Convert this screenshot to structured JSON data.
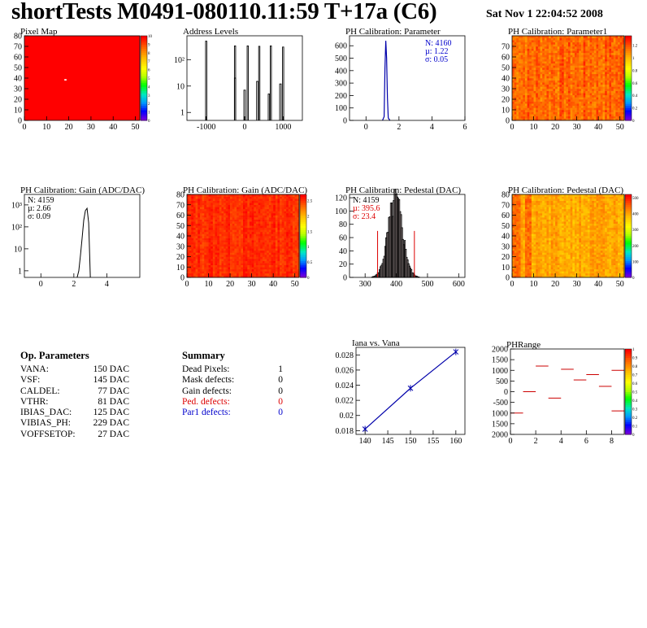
{
  "header": {
    "title": "shortTests M0491-080110.11:59 T+17a (C6)",
    "date": "Sat Nov  1 22:04:52 2008"
  },
  "colors": {
    "blue_text": "#0000cc",
    "red_text": "#dd0000",
    "blue_line": "#0000aa"
  },
  "op_parameters": {
    "title": "Op. Parameters",
    "rows": [
      {
        "key": "VANA:",
        "value": "150 DAC"
      },
      {
        "key": "VSF:",
        "value": "145 DAC"
      },
      {
        "key": "CALDEL:",
        "value": "77 DAC"
      },
      {
        "key": "VTHR:",
        "value": "81 DAC"
      },
      {
        "key": "IBIAS_DAC:",
        "value": "125 DAC"
      },
      {
        "key": "VIBIAS_PH:",
        "value": "229 DAC"
      },
      {
        "key": "VOFFSETOP:",
        "value": "27 DAC"
      }
    ]
  },
  "summary": {
    "title": "Summary",
    "rows": [
      {
        "key": "Dead Pixels:",
        "value": "1",
        "color": "#000000"
      },
      {
        "key": "Mask defects:",
        "value": "0",
        "color": "#000000"
      },
      {
        "key": "Gain defects:",
        "value": "0",
        "color": "#000000"
      },
      {
        "key": "Ped. defects:",
        "value": "0",
        "color": "#dd0000"
      },
      {
        "key": "Par1 defects:",
        "value": "0",
        "color": "#0000cc"
      }
    ]
  },
  "chart_data": [
    {
      "id": "pixel_map",
      "type": "heatmap",
      "title": "Pixel Map",
      "xlim": [
        0,
        52
      ],
      "ylim": [
        0,
        80
      ],
      "xticks": [
        "0",
        "10",
        "20",
        "30",
        "40",
        "50"
      ],
      "yticks": [
        "0",
        "10",
        "20",
        "30",
        "40",
        "50",
        "60",
        "70",
        "80"
      ],
      "zticks": [
        "0",
        "1",
        "2",
        "3",
        "4",
        "5",
        "6",
        "7",
        "8",
        "9",
        "10"
      ],
      "zlim": [
        0,
        10
      ],
      "uniform_value": 10,
      "dead_pixels": [
        {
          "col": 18,
          "row": 38
        }
      ]
    },
    {
      "id": "address_levels",
      "type": "line",
      "title": "Address Levels",
      "xlim": [
        -1500,
        1500
      ],
      "ylog": true,
      "ylim": [
        0.5,
        800
      ],
      "xticks": [
        "-1000",
        "0",
        "1000"
      ],
      "yticks": [
        "1",
        "10",
        "10²"
      ],
      "peaks": [
        {
          "x": -1000,
          "y": 500,
          "width": 10
        },
        {
          "x": -250,
          "y": 20,
          "width": 30
        },
        {
          "x": -250,
          "y": 330,
          "width": 10
        },
        {
          "x": 0,
          "y": 7,
          "width": 40
        },
        {
          "x": 80,
          "y": 330,
          "width": 10
        },
        {
          "x": 330,
          "y": 15,
          "width": 40
        },
        {
          "x": 380,
          "y": 320,
          "width": 10
        },
        {
          "x": 630,
          "y": 5,
          "width": 35
        },
        {
          "x": 680,
          "y": 330,
          "width": 10
        },
        {
          "x": 930,
          "y": 12,
          "width": 40
        },
        {
          "x": 1000,
          "y": 300,
          "width": 10
        }
      ]
    },
    {
      "id": "ph_cal_param",
      "type": "line",
      "title": "PH Calibration: Parameter",
      "xlim": [
        -1,
        6
      ],
      "ylim": [
        0,
        680
      ],
      "xticks": [
        "0",
        "2",
        "4",
        "6"
      ],
      "yticks": [
        "0",
        "100",
        "200",
        "300",
        "400",
        "500",
        "600"
      ],
      "stats": {
        "N": "N: 4160",
        "mu": "µ: 1.22",
        "sigma": "σ: 0.05"
      },
      "x": [
        1.0,
        1.1,
        1.15,
        1.2,
        1.25,
        1.3,
        1.35,
        1.45
      ],
      "y": [
        0,
        30,
        420,
        640,
        500,
        180,
        20,
        0
      ]
    },
    {
      "id": "ph_cal_param1",
      "type": "heatmap",
      "title": "PH Calibration: Parameter1",
      "xlim": [
        0,
        52
      ],
      "ylim": [
        0,
        80
      ],
      "xticks": [
        "0",
        "10",
        "20",
        "30",
        "40",
        "50"
      ],
      "yticks": [
        "0",
        "10",
        "20",
        "30",
        "40",
        "50",
        "60",
        "70"
      ],
      "zticks": [
        "0",
        "0.2",
        "0.4",
        "0.6",
        "0.8",
        "1",
        "1.2"
      ],
      "zlim": [
        0,
        1.35
      ],
      "typical_range": [
        1.05,
        1.3
      ]
    },
    {
      "id": "gain_hist",
      "type": "line",
      "title": "PH Calibration: Gain (ADC/DAC)",
      "xlim": [
        -1,
        6
      ],
      "ylog": true,
      "ylim": [
        0.5,
        3000
      ],
      "xticks": [
        "0",
        "2",
        "4"
      ],
      "yticks": [
        "1",
        "10",
        "10²",
        "10³"
      ],
      "stats": {
        "N": "N: 4159",
        "mu": "µ: 2.66",
        "sigma": "σ: 0.09"
      },
      "x": [
        2.2,
        2.3,
        2.4,
        2.5,
        2.6,
        2.7,
        2.8,
        2.9,
        3.0
      ],
      "y": [
        0,
        1,
        5,
        30,
        200,
        550,
        700,
        150,
        0
      ]
    },
    {
      "id": "gain_map",
      "type": "heatmap",
      "title": "PH Calibration: Gain (ADC/DAC)",
      "xlim": [
        0,
        52
      ],
      "ylim": [
        0,
        80
      ],
      "xticks": [
        "0",
        "10",
        "20",
        "30",
        "40",
        "50"
      ],
      "yticks": [
        "0",
        "10",
        "20",
        "30",
        "40",
        "50",
        "60",
        "70",
        "80"
      ],
      "zticks": [
        "0",
        "0.5",
        "1",
        "1.5",
        "2",
        "2.5"
      ],
      "zlim": [
        0,
        2.7
      ],
      "typical_range": [
        2.4,
        2.7
      ]
    },
    {
      "id": "pedestal_hist",
      "type": "bar",
      "title": "PH Calibration: Pedestal (DAC)",
      "xlim": [
        250,
        620
      ],
      "ylim": [
        0,
        125
      ],
      "xticks": [
        "300",
        "400",
        "500",
        "600"
      ],
      "yticks": [
        "0",
        "20",
        "40",
        "60",
        "80",
        "100",
        "120"
      ],
      "stats": {
        "N": "N: 4159",
        "mu": "µ: 395.6",
        "sigma": "σ: 23.4"
      },
      "mean": 395.6,
      "sigma": 23.4,
      "peak": 115,
      "cut_lines": [
        {
          "x": 340,
          "y": 70
        },
        {
          "x": 458,
          "y": 70
        }
      ]
    },
    {
      "id": "pedestal_map",
      "type": "heatmap",
      "title": "PH Calibration: Pedestal (DAC)",
      "xlim": [
        0,
        52
      ],
      "ylim": [
        0,
        80
      ],
      "xticks": [
        "0",
        "10",
        "20",
        "30",
        "40",
        "50"
      ],
      "yticks": [
        "0",
        "10",
        "20",
        "30",
        "40",
        "50",
        "60",
        "70",
        "80"
      ],
      "zticks": [
        "0",
        "100",
        "200",
        "300",
        "400",
        "500"
      ],
      "zlim": [
        0,
        520
      ],
      "typical_range": [
        360,
        440
      ]
    },
    {
      "id": "iana_vana",
      "type": "scatter",
      "title": "Iana vs. Vana",
      "xlim": [
        138,
        162
      ],
      "ylim": [
        0.0175,
        0.029
      ],
      "xticks": [
        "140",
        "145",
        "150",
        "155",
        "160"
      ],
      "yticks": [
        "0.018",
        "0.02",
        "0.022",
        "0.024",
        "0.026",
        "0.028"
      ],
      "x": [
        140,
        150,
        160
      ],
      "y": [
        0.0182,
        0.0236,
        0.0284
      ]
    },
    {
      "id": "phrange",
      "type": "heatmap",
      "title": "PHRange",
      "xlim": [
        0,
        9
      ],
      "ylim": [
        -2000,
        2000
      ],
      "xticks": [
        "0",
        "2",
        "4",
        "6",
        "8"
      ],
      "yticks": [
        "2000",
        "1500",
        "1000",
        "500",
        "0",
        "-500",
        "1000",
        "1500",
        "2000"
      ],
      "zticks": [
        "0",
        "0.1",
        "0.2",
        "0.3",
        "0.4",
        "0.5",
        "0.6",
        "0.7",
        "0.8",
        "0.9",
        "1"
      ],
      "segments": [
        {
          "x": 0,
          "y": -1000
        },
        {
          "x": 1,
          "y": 0
        },
        {
          "x": 2,
          "y": 1200
        },
        {
          "x": 3,
          "y": -300
        },
        {
          "x": 4,
          "y": 1050
        },
        {
          "x": 5,
          "y": 550
        },
        {
          "x": 6,
          "y": 800
        },
        {
          "x": 7,
          "y": 250
        },
        {
          "x": 8,
          "y": 1000
        },
        {
          "x": 8,
          "y": -900
        }
      ]
    }
  ]
}
